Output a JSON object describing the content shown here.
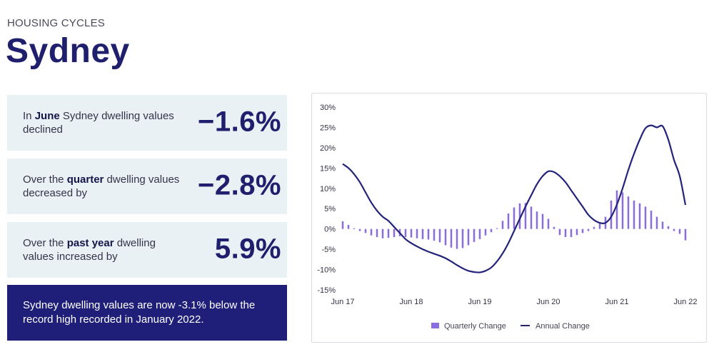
{
  "header": {
    "kicker": "HOUSING CYCLES",
    "title": "Sydney"
  },
  "stats": [
    {
      "pre": "In ",
      "bold": "June",
      "post": " Sydney dwelling values declined",
      "value": "−1.6%"
    },
    {
      "pre": "Over the ",
      "bold": "quarter",
      "post": " dwelling values decreased by",
      "value": "−2.8%"
    },
    {
      "pre": "Over the ",
      "bold": "past year",
      "post": " dwelling values increased by",
      "value": "5.9%"
    }
  ],
  "note": {
    "text": "Sydney dwelling values are now -3.1% below the record high recorded in January 2022."
  },
  "colors": {
    "title": "#1f1f6e",
    "bars": "#8b6be0",
    "line": "#23237a",
    "note_bg": "#1f1f7a",
    "panel_bg": "#eaf1f4"
  },
  "chart_data": {
    "type": "bar+line",
    "title": "",
    "xlabel": "",
    "ylabel": "",
    "ylim": [
      -15,
      30
    ],
    "y_ticks": [
      -15,
      -10,
      -5,
      0,
      5,
      10,
      15,
      20,
      25,
      30
    ],
    "y_tick_labels": [
      "-15%",
      "-10%",
      "-5%",
      "0%",
      "5%",
      "10%",
      "15%",
      "20%",
      "25%",
      "30%"
    ],
    "x_range": [
      0,
      60
    ],
    "x_ticks": [
      {
        "label": "Jun 17",
        "x": 0
      },
      {
        "label": "Jun 18",
        "x": 12
      },
      {
        "label": "Jun 19",
        "x": 24
      },
      {
        "label": "Jun 20",
        "x": 36
      },
      {
        "label": "Jun 21",
        "x": 48
      },
      {
        "label": "Jun 22",
        "x": 60
      }
    ],
    "legend": {
      "position": "bottom-center",
      "items": [
        "Quarterly Change",
        "Annual Change"
      ]
    },
    "series": [
      {
        "name": "Quarterly Change",
        "kind": "bar",
        "values": [
          1.9,
          1.0,
          0.2,
          -0.5,
          -1.0,
          -1.6,
          -2.0,
          -2.3,
          -2.2,
          -2.0,
          -1.8,
          -2.0,
          -2.1,
          -2.3,
          -2.5,
          -2.6,
          -2.9,
          -3.3,
          -4.0,
          -4.6,
          -4.9,
          -4.7,
          -4.0,
          -3.2,
          -2.5,
          -1.6,
          -0.8,
          0.2,
          2.0,
          3.8,
          5.3,
          6.3,
          6.4,
          5.5,
          4.3,
          3.7,
          2.5,
          0.5,
          -1.5,
          -2.0,
          -2.0,
          -1.5,
          -1.0,
          -0.5,
          0.5,
          1.5,
          3.0,
          7.0,
          9.5,
          9.0,
          8.0,
          7.0,
          6.3,
          5.5,
          4.5,
          3.0,
          1.8,
          0.7,
          -0.5,
          -1.2,
          -2.8
        ]
      },
      {
        "name": "Annual Change",
        "kind": "line",
        "values": [
          16.0,
          15.0,
          13.5,
          11.5,
          9.0,
          6.5,
          4.5,
          3.0,
          2.0,
          0.5,
          -1.0,
          -2.5,
          -3.5,
          -4.3,
          -5.0,
          -5.6,
          -6.1,
          -6.6,
          -7.2,
          -8.0,
          -8.9,
          -9.7,
          -10.3,
          -10.6,
          -10.7,
          -10.3,
          -9.5,
          -8.0,
          -6.0,
          -3.5,
          -0.5,
          2.5,
          5.5,
          8.3,
          11.0,
          13.0,
          14.2,
          14.0,
          13.0,
          11.5,
          9.5,
          7.5,
          5.5,
          3.5,
          2.2,
          1.5,
          1.5,
          3.0,
          6.0,
          10.0,
          14.5,
          18.5,
          22.0,
          24.8,
          25.5,
          25.0,
          25.3,
          22.0,
          17.0,
          13.0,
          5.9
        ]
      }
    ]
  }
}
